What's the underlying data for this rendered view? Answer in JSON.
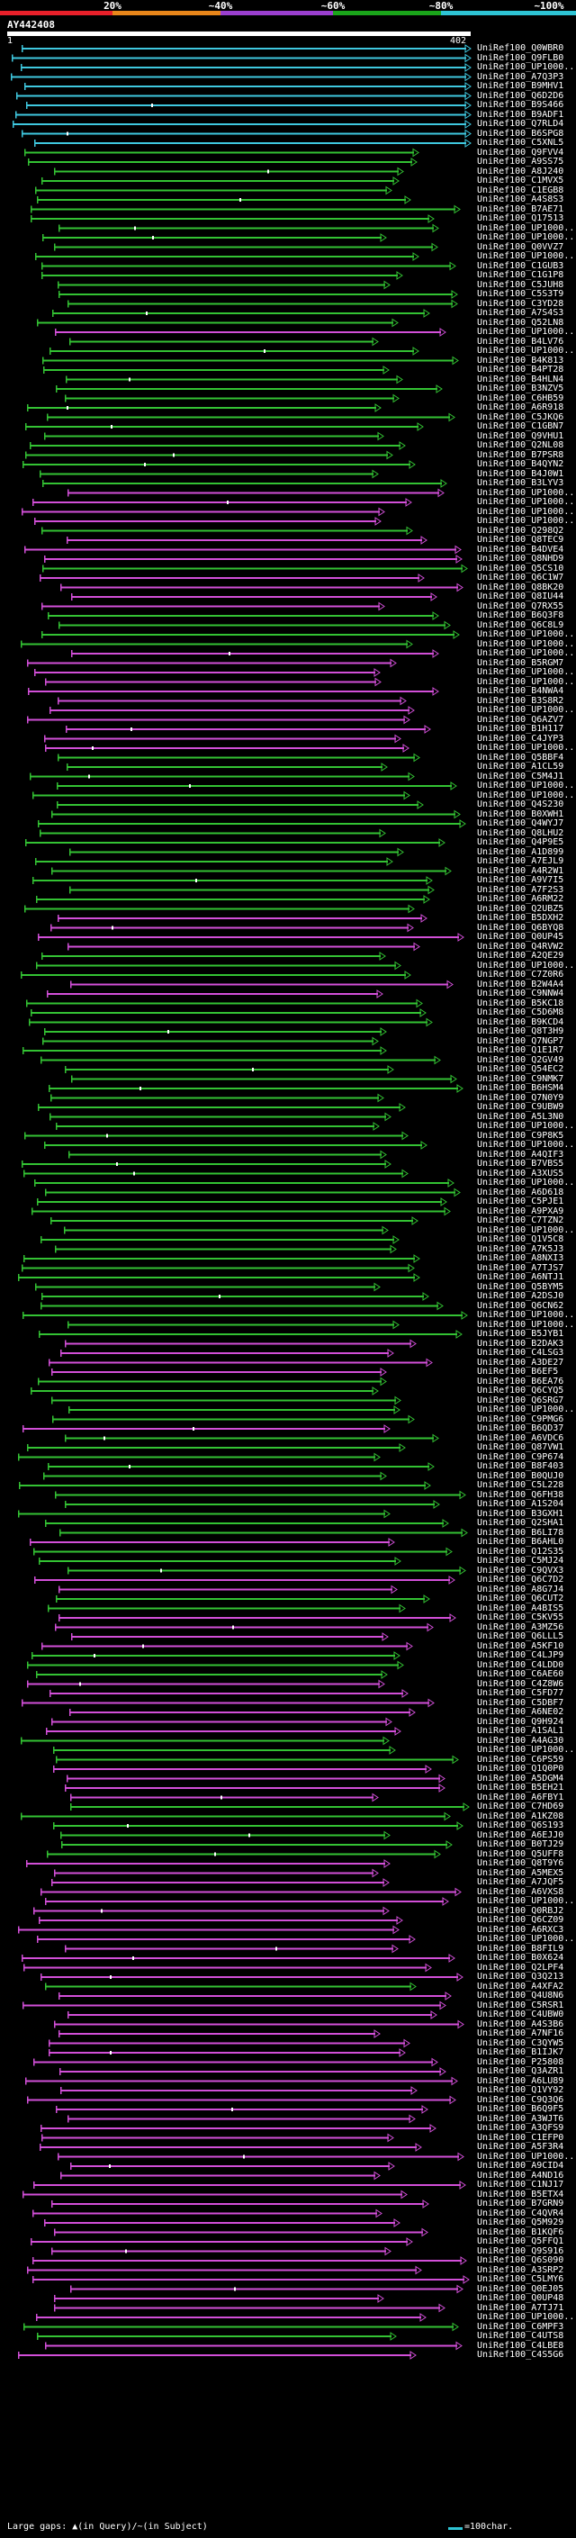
{
  "legend": {
    "marks": [
      {
        "label": "20%",
        "color": "#e8202a"
      },
      {
        "label": "~40%",
        "color": "#e8861a"
      },
      {
        "label": "~60%",
        "color": "#9b3fcf"
      },
      {
        "label": "~80%",
        "color": "#1aa51a"
      },
      {
        "label": "~100%",
        "color": "#2ec4d4"
      }
    ]
  },
  "query": {
    "name": "AY442408",
    "start": "1",
    "end": "402"
  },
  "colors": {
    "cyan": "#3fc8df",
    "green": "#33c233",
    "magenta": "#d24fd8",
    "tick": "#ffffff"
  },
  "hits": [
    {
      "label": "UniRef100_Q0WBR0",
      "color": "cyan"
    },
    {
      "label": "UniRef100_Q9FLB0",
      "color": "cyan"
    },
    {
      "label": "UniRef100_UP1000...",
      "color": "cyan"
    },
    {
      "label": "UniRef100_A7Q3P3",
      "color": "cyan"
    },
    {
      "label": "UniRef100_B9MHV1",
      "color": "cyan"
    },
    {
      "label": "UniRef100_Q6D2D6",
      "color": "cyan"
    },
    {
      "label": "UniRef100_B9S466",
      "color": "cyan"
    },
    {
      "label": "UniRef100_B9ADF1",
      "color": "cyan"
    },
    {
      "label": "UniRef100_Q7RLD4",
      "color": "cyan"
    },
    {
      "label": "UniRef100_B6SPG8",
      "color": "cyan"
    },
    {
      "label": "UniRef100_C5XNL5",
      "color": "cyan"
    },
    {
      "label": "UniRef100_Q9FVV4",
      "color": "green"
    },
    {
      "label": "UniRef100_A9SS75",
      "color": "green"
    },
    {
      "label": "UniRef100_A8J240",
      "color": "green"
    },
    {
      "label": "UniRef100_C1MVX5",
      "color": "green"
    },
    {
      "label": "UniRef100_C1EGB8",
      "color": "green"
    },
    {
      "label": "UniRef100_A4S8S3",
      "color": "green"
    },
    {
      "label": "UniRef100_B7AE71",
      "color": "green"
    },
    {
      "label": "UniRef100_Q17513",
      "color": "green"
    },
    {
      "label": "UniRef100_UP1000...",
      "color": "green"
    },
    {
      "label": "UniRef100_UP1000...",
      "color": "green"
    },
    {
      "label": "UniRef100_Q0VVZ7",
      "color": "green"
    },
    {
      "label": "UniRef100_UP1000...",
      "color": "green"
    },
    {
      "label": "UniRef100_C1GUB3",
      "color": "green"
    },
    {
      "label": "UniRef100_C1G1P8",
      "color": "green"
    },
    {
      "label": "UniRef100_C5JUH8",
      "color": "green"
    },
    {
      "label": "UniRef100_C5S3T9",
      "color": "green"
    },
    {
      "label": "UniRef100_C3YD28",
      "color": "green"
    },
    {
      "label": "UniRef100_A7S4S3",
      "color": "green"
    },
    {
      "label": "UniRef100_Q52LN8",
      "color": "green"
    },
    {
      "label": "UniRef100_UP1000...",
      "color": "magenta"
    },
    {
      "label": "UniRef100_B4LV76",
      "color": "green"
    },
    {
      "label": "UniRef100_UP1000...",
      "color": "green"
    },
    {
      "label": "UniRef100_B4K813",
      "color": "green"
    },
    {
      "label": "UniRef100_B4PT28",
      "color": "green"
    },
    {
      "label": "UniRef100_B4HLN4",
      "color": "green"
    },
    {
      "label": "UniRef100_B3NZV5",
      "color": "green"
    },
    {
      "label": "UniRef100_C6HB59",
      "color": "green"
    },
    {
      "label": "UniRef100_A6R918",
      "color": "green"
    },
    {
      "label": "UniRef100_C5JKQ6",
      "color": "green"
    },
    {
      "label": "UniRef100_C1GBN7",
      "color": "green"
    },
    {
      "label": "UniRef100_Q9VHU1",
      "color": "green"
    },
    {
      "label": "UniRef100_Q2NL08",
      "color": "green"
    },
    {
      "label": "UniRef100_B7PSR8",
      "color": "green"
    },
    {
      "label": "UniRef100_B4QYN2",
      "color": "green"
    },
    {
      "label": "UniRef100_B4J0W1",
      "color": "green"
    },
    {
      "label": "UniRef100_B3LYV3",
      "color": "green"
    },
    {
      "label": "UniRef100_UP1000...",
      "color": "magenta"
    },
    {
      "label": "UniRef100_UP1000...",
      "color": "magenta"
    },
    {
      "label": "UniRef100_UP1000...",
      "color": "magenta"
    },
    {
      "label": "UniRef100_UP1000...",
      "color": "magenta"
    },
    {
      "label": "UniRef100_Q298Q2",
      "color": "green"
    },
    {
      "label": "UniRef100_Q8TEC9",
      "color": "magenta"
    },
    {
      "label": "UniRef100_B4DVE4",
      "color": "magenta"
    },
    {
      "label": "UniRef100_Q8NHD9",
      "color": "magenta"
    },
    {
      "label": "UniRef100_Q5CS10",
      "color": "green"
    },
    {
      "label": "UniRef100_Q6C1W7",
      "color": "magenta"
    },
    {
      "label": "UniRef100_Q8BK20",
      "color": "magenta"
    },
    {
      "label": "UniRef100_Q8IU44",
      "color": "magenta"
    },
    {
      "label": "UniRef100_Q7RX55",
      "color": "magenta"
    },
    {
      "label": "UniRef100_B6Q3F8",
      "color": "green"
    },
    {
      "label": "UniRef100_Q6C8L9",
      "color": "green"
    },
    {
      "label": "UniRef100_UP1000...",
      "color": "green"
    },
    {
      "label": "UniRef100_UP1000...",
      "color": "green"
    },
    {
      "label": "UniRef100_UP1000...",
      "color": "magenta"
    },
    {
      "label": "UniRef100_B5RGM7",
      "color": "magenta"
    },
    {
      "label": "UniRef100_UP1000...",
      "color": "magenta"
    },
    {
      "label": "UniRef100_UP1000...",
      "color": "magenta"
    },
    {
      "label": "UniRef100_B4NWA4",
      "color": "magenta"
    },
    {
      "label": "UniRef100_B3S8R2",
      "color": "magenta"
    },
    {
      "label": "UniRef100_UP1000...",
      "color": "magenta"
    },
    {
      "label": "UniRef100_Q6AZV7",
      "color": "magenta"
    },
    {
      "label": "UniRef100_B1H117",
      "color": "magenta"
    },
    {
      "label": "UniRef100_C4JYP3",
      "color": "magenta"
    },
    {
      "label": "UniRef100_UP1000...",
      "color": "magenta"
    },
    {
      "label": "UniRef100_Q5BBF4",
      "color": "green"
    },
    {
      "label": "UniRef100_A1CL59",
      "color": "green"
    },
    {
      "label": "UniRef100_C5M4J1",
      "color": "green"
    },
    {
      "label": "UniRef100_UP1000...",
      "color": "green"
    },
    {
      "label": "UniRef100_UP1000...",
      "color": "green"
    },
    {
      "label": "UniRef100_Q4S230",
      "color": "green"
    },
    {
      "label": "UniRef100_B0XWH1",
      "color": "green"
    },
    {
      "label": "UniRef100_Q4WYJ7",
      "color": "green"
    },
    {
      "label": "UniRef100_Q8LHU2",
      "color": "green"
    },
    {
      "label": "UniRef100_Q4P9E5",
      "color": "green"
    },
    {
      "label": "UniRef100_A1D899",
      "color": "green"
    },
    {
      "label": "UniRef100_A7EJL9",
      "color": "green"
    },
    {
      "label": "UniRef100_A4R2W1",
      "color": "green"
    },
    {
      "label": "UniRef100_A9V7I5",
      "color": "green"
    },
    {
      "label": "UniRef100_A7F2S3",
      "color": "green"
    },
    {
      "label": "UniRef100_A6RM22",
      "color": "green"
    },
    {
      "label": "UniRef100_Q2UBZ5",
      "color": "green"
    },
    {
      "label": "UniRef100_B5DXH2",
      "color": "magenta"
    },
    {
      "label": "UniRef100_Q6BYQ8",
      "color": "magenta"
    },
    {
      "label": "UniRef100_Q0UP45",
      "color": "magenta"
    },
    {
      "label": "UniRef100_Q4RVW2",
      "color": "magenta"
    },
    {
      "label": "UniRef100_A2QE29",
      "color": "green"
    },
    {
      "label": "UniRef100_UP1000...",
      "color": "green"
    },
    {
      "label": "UniRef100_C7Z0R6",
      "color": "green"
    },
    {
      "label": "UniRef100_B2W4A4",
      "color": "magenta"
    },
    {
      "label": "UniRef100_C9NNW4",
      "color": "magenta"
    },
    {
      "label": "UniRef100_B5KC18",
      "color": "green"
    },
    {
      "label": "UniRef100_C5D6M8",
      "color": "green"
    },
    {
      "label": "UniRef100_B9KCD4",
      "color": "green"
    },
    {
      "label": "UniRef100_Q8T3H9",
      "color": "green"
    },
    {
      "label": "UniRef100_Q7NGP7",
      "color": "green"
    },
    {
      "label": "UniRef100_Q1E1R7",
      "color": "green"
    },
    {
      "label": "UniRef100_Q2GV49",
      "color": "green"
    },
    {
      "label": "UniRef100_Q54EC2",
      "color": "green"
    },
    {
      "label": "UniRef100_C9NMK7",
      "color": "green"
    },
    {
      "label": "UniRef100_B6HSM4",
      "color": "green"
    },
    {
      "label": "UniRef100_Q7N0Y9",
      "color": "green"
    },
    {
      "label": "UniRef100_C9UBW9",
      "color": "green"
    },
    {
      "label": "UniRef100_A5L3N0",
      "color": "green"
    },
    {
      "label": "UniRef100_UP1000...",
      "color": "green"
    },
    {
      "label": "UniRef100_C9P8K5",
      "color": "green"
    },
    {
      "label": "UniRef100_UP1000...",
      "color": "green"
    },
    {
      "label": "UniRef100_A4QIF3",
      "color": "green"
    },
    {
      "label": "UniRef100_B7VBS5",
      "color": "green"
    },
    {
      "label": "UniRef100_A3XUS5",
      "color": "green"
    },
    {
      "label": "UniRef100_UP1000...",
      "color": "green"
    },
    {
      "label": "UniRef100_A6D618",
      "color": "green"
    },
    {
      "label": "UniRef100_C5PJE1",
      "color": "green"
    },
    {
      "label": "UniRef100_A9PXA9",
      "color": "green"
    },
    {
      "label": "UniRef100_C7TZN2",
      "color": "green"
    },
    {
      "label": "UniRef100_UP1000...",
      "color": "green"
    },
    {
      "label": "UniRef100_Q1V5C8",
      "color": "green"
    },
    {
      "label": "UniRef100_A7K5J3",
      "color": "green"
    },
    {
      "label": "UniRef100_A8NXI3",
      "color": "green"
    },
    {
      "label": "UniRef100_A7TJS7",
      "color": "green"
    },
    {
      "label": "UniRef100_A6NTJ1",
      "color": "green"
    },
    {
      "label": "UniRef100_Q5BYM5",
      "color": "green"
    },
    {
      "label": "UniRef100_A2DSJ0",
      "color": "green"
    },
    {
      "label": "UniRef100_Q6CN62",
      "color": "green"
    },
    {
      "label": "UniRef100_UP1000...",
      "color": "green"
    },
    {
      "label": "UniRef100_UP1000...",
      "color": "green"
    },
    {
      "label": "UniRef100_B5JYB1",
      "color": "green"
    },
    {
      "label": "UniRef100_B2DAK3",
      "color": "magenta"
    },
    {
      "label": "UniRef100_C4LSG3",
      "color": "magenta"
    },
    {
      "label": "UniRef100_A3DE27",
      "color": "magenta"
    },
    {
      "label": "UniRef100_B6EF5",
      "color": "magenta"
    },
    {
      "label": "UniRef100_B6EA76",
      "color": "green"
    },
    {
      "label": "UniRef100_Q6CYQ5",
      "color": "green"
    },
    {
      "label": "UniRef100_Q6SRG7",
      "color": "green"
    },
    {
      "label": "UniRef100_UP1000...",
      "color": "green"
    },
    {
      "label": "UniRef100_C9PMG6",
      "color": "green"
    },
    {
      "label": "UniRef100_B6QD37",
      "color": "magenta"
    },
    {
      "label": "UniRef100_A6VDC6",
      "color": "green"
    },
    {
      "label": "UniRef100_Q87VW1",
      "color": "green"
    },
    {
      "label": "UniRef100_C9P674",
      "color": "green"
    },
    {
      "label": "UniRef100_B8F403",
      "color": "green"
    },
    {
      "label": "UniRef100_B0QUJ0",
      "color": "green"
    },
    {
      "label": "UniRef100_C5L228",
      "color": "green"
    },
    {
      "label": "UniRef100_Q6FH38",
      "color": "green"
    },
    {
      "label": "UniRef100_A1S204",
      "color": "green"
    },
    {
      "label": "UniRef100_B3GXH1",
      "color": "green"
    },
    {
      "label": "UniRef100_Q2SHA1",
      "color": "green"
    },
    {
      "label": "UniRef100_B6LI78",
      "color": "green"
    },
    {
      "label": "UniRef100_B6AHL0",
      "color": "magenta"
    },
    {
      "label": "UniRef100_Q12S35",
      "color": "green"
    },
    {
      "label": "UniRef100_C5MJ24",
      "color": "green"
    },
    {
      "label": "UniRef100_C9QVX3",
      "color": "green"
    },
    {
      "label": "UniRef100_Q6C7D2",
      "color": "magenta"
    },
    {
      "label": "UniRef100_A8G7J4",
      "color": "magenta"
    },
    {
      "label": "UniRef100_Q6CUT2",
      "color": "green"
    },
    {
      "label": "UniRef100_A4BIS5",
      "color": "green"
    },
    {
      "label": "UniRef100_C5KV55",
      "color": "magenta"
    },
    {
      "label": "UniRef100_A3MZ56",
      "color": "magenta"
    },
    {
      "label": "UniRef100_Q6LLL5",
      "color": "magenta"
    },
    {
      "label": "UniRef100_A5KF10",
      "color": "magenta"
    },
    {
      "label": "UniRef100_C4LJP9",
      "color": "green"
    },
    {
      "label": "UniRef100_C4LDD0",
      "color": "green"
    },
    {
      "label": "UniRef100_C6AE60",
      "color": "green"
    },
    {
      "label": "UniRef100_C4Z8W6",
      "color": "magenta"
    },
    {
      "label": "UniRef100_C5FD77",
      "color": "magenta"
    },
    {
      "label": "UniRef100_C5DBF7",
      "color": "magenta"
    },
    {
      "label": "UniRef100_A6NE02",
      "color": "magenta"
    },
    {
      "label": "UniRef100_Q9H924",
      "color": "magenta"
    },
    {
      "label": "UniRef100_A1SAL1",
      "color": "magenta"
    },
    {
      "label": "UniRef100_A4AG30",
      "color": "green"
    },
    {
      "label": "UniRef100_UP1000...",
      "color": "green"
    },
    {
      "label": "UniRef100_C6PS59",
      "color": "green"
    },
    {
      "label": "UniRef100_Q1Q0P0",
      "color": "magenta"
    },
    {
      "label": "UniRef100_A5DGM4",
      "color": "magenta"
    },
    {
      "label": "UniRef100_B5EH21",
      "color": "magenta"
    },
    {
      "label": "UniRef100_A6FBY1",
      "color": "magenta"
    },
    {
      "label": "UniRef100_C7HD69",
      "color": "green"
    },
    {
      "label": "UniRef100_A1KZ08",
      "color": "green"
    },
    {
      "label": "UniRef100_Q6S193",
      "color": "green"
    },
    {
      "label": "UniRef100_A6EJJ0",
      "color": "green"
    },
    {
      "label": "UniRef100_B0TJ29",
      "color": "green"
    },
    {
      "label": "UniRef100_Q5UFF8",
      "color": "green"
    },
    {
      "label": "UniRef100_Q8T9Y6",
      "color": "magenta"
    },
    {
      "label": "UniRef100_A5MEX5",
      "color": "magenta"
    },
    {
      "label": "UniRef100_A7JQF5",
      "color": "magenta"
    },
    {
      "label": "UniRef100_A6VXS8",
      "color": "magenta"
    },
    {
      "label": "UniRef100_UP1000...",
      "color": "magenta"
    },
    {
      "label": "UniRef100_Q0RBJ2",
      "color": "magenta"
    },
    {
      "label": "UniRef100_Q6CZ09",
      "color": "magenta"
    },
    {
      "label": "UniRef100_A6RXC3",
      "color": "magenta"
    },
    {
      "label": "UniRef100_UP1000...",
      "color": "magenta"
    },
    {
      "label": "UniRef100_B8FIL9",
      "color": "magenta"
    },
    {
      "label": "UniRef100_B0X624",
      "color": "magenta"
    },
    {
      "label": "UniRef100_Q2LPF4",
      "color": "magenta"
    },
    {
      "label": "UniRef100_Q3Q213",
      "color": "magenta"
    },
    {
      "label": "UniRef100_A4XFA2",
      "color": "green"
    },
    {
      "label": "UniRef100_Q4U8N6",
      "color": "magenta"
    },
    {
      "label": "UniRef100_C5RSR1",
      "color": "magenta"
    },
    {
      "label": "UniRef100_C4UBW0",
      "color": "magenta"
    },
    {
      "label": "UniRef100_A4S3B6",
      "color": "magenta"
    },
    {
      "label": "UniRef100_A7NF16",
      "color": "magenta"
    },
    {
      "label": "UniRef100_C3QYW5",
      "color": "magenta"
    },
    {
      "label": "UniRef100_B1IJK7",
      "color": "magenta"
    },
    {
      "label": "UniRef100_P25808",
      "color": "magenta"
    },
    {
      "label": "UniRef100_Q3AZR1",
      "color": "magenta"
    },
    {
      "label": "UniRef100_A6LU89",
      "color": "magenta"
    },
    {
      "label": "UniRef100_Q1VY92",
      "color": "magenta"
    },
    {
      "label": "UniRef100_C9Q3Q6",
      "color": "magenta"
    },
    {
      "label": "UniRef100_B6Q9F5",
      "color": "magenta"
    },
    {
      "label": "UniRef100_A3WJT6",
      "color": "magenta"
    },
    {
      "label": "UniRef100_A3QFS9",
      "color": "magenta"
    },
    {
      "label": "UniRef100_C1EFP0",
      "color": "magenta"
    },
    {
      "label": "UniRef100_A5F3R4",
      "color": "magenta"
    },
    {
      "label": "UniRef100_UP1000...",
      "color": "magenta"
    },
    {
      "label": "UniRef100_A9CID4",
      "color": "magenta"
    },
    {
      "label": "UniRef100_A4ND16",
      "color": "magenta"
    },
    {
      "label": "UniRef100_C1NJ17",
      "color": "magenta"
    },
    {
      "label": "UniRef100_B5ETX4",
      "color": "magenta"
    },
    {
      "label": "UniRef100_B7GRN9",
      "color": "magenta"
    },
    {
      "label": "UniRef100_C4QVR4",
      "color": "magenta"
    },
    {
      "label": "UniRef100_Q5M929",
      "color": "magenta"
    },
    {
      "label": "UniRef100_B1KQF6",
      "color": "magenta"
    },
    {
      "label": "UniRef100_Q5FFQ1",
      "color": "magenta"
    },
    {
      "label": "UniRef100_Q9S916",
      "color": "magenta"
    },
    {
      "label": "UniRef100_Q6S090",
      "color": "magenta"
    },
    {
      "label": "UniRef100_A3SRP2",
      "color": "magenta"
    },
    {
      "label": "UniRef100_C5LMY6",
      "color": "magenta"
    },
    {
      "label": "UniRef100_Q0EJ05",
      "color": "magenta"
    },
    {
      "label": "UniRef100_Q0UP48",
      "color": "magenta"
    },
    {
      "label": "UniRef100_A7TJ71",
      "color": "magenta"
    },
    {
      "label": "UniRef100_UP1000...",
      "color": "magenta"
    },
    {
      "label": "UniRef100_C6MPF3",
      "color": "green"
    },
    {
      "label": "UniRef100_C4UTS8",
      "color": "green"
    },
    {
      "label": "UniRef100_C4LBE8",
      "color": "magenta"
    },
    {
      "label": "UniRef100_C4S5G6",
      "color": "magenta"
    }
  ],
  "footer": {
    "gap_label": "Large gaps: ▲(in Query)/~(in Subject)",
    "scale_label": "=100char."
  }
}
